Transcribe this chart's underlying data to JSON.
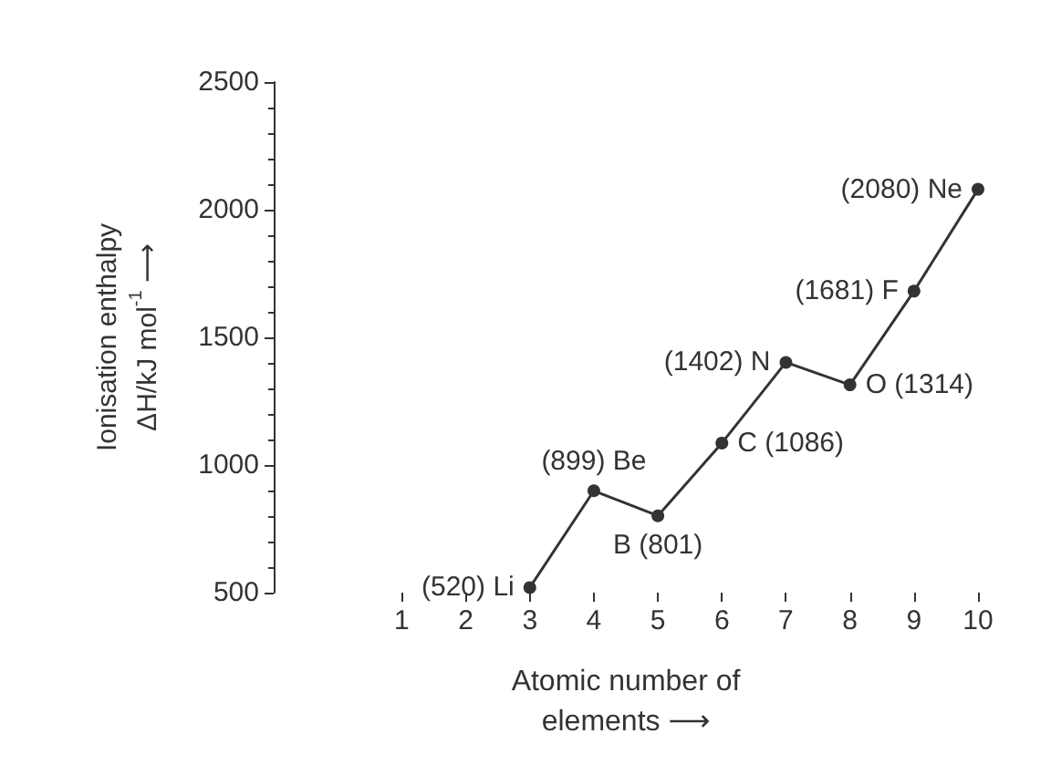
{
  "chart_data": {
    "type": "line",
    "xlabel": "Atomic number of\nelements ⟶",
    "ylabel": "Ionisation enthalpy\nΔH/kJ mol$^{-1}$ ⟶",
    "series": [
      {
        "color": "#333333",
        "x": [
          3,
          4,
          5,
          6,
          7,
          8,
          9,
          10
        ],
        "values": [
          520,
          899,
          801,
          1086,
          1402,
          1314,
          1681,
          2080
        ],
        "value_labels": [
          "(520) Li",
          "(899) Be",
          "B (801)",
          "C (1086)",
          "(1402) N",
          "O (1314)",
          "(1681) F",
          "(2080) Ne"
        ]
      }
    ],
    "xlim": [
      -1,
      10
    ],
    "xticks": [
      1,
      2,
      3,
      4,
      5,
      6,
      7,
      8,
      9,
      10
    ],
    "ylim": [
      500,
      2500
    ],
    "yticks": [
      500,
      1000,
      1500,
      2000,
      2500
    ],
    "grid": false,
    "marker": "circle",
    "line_style": "solid"
  }
}
